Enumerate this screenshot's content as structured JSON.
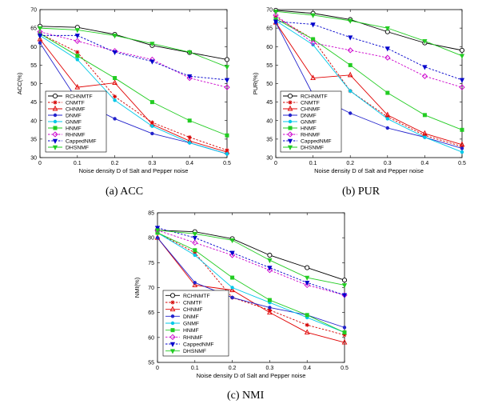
{
  "captions": [
    "(a)  ACC",
    "(b)  PUR",
    "(c)  NMI"
  ],
  "legend": {
    "RCHNMTF": {
      "color": "#000000",
      "marker": "circle",
      "dash": false
    },
    "CNMTF": {
      "color": "#d40000",
      "marker": "star",
      "dash": true
    },
    "CHNMF": {
      "color": "#e00000",
      "marker": "triangle",
      "dash": false
    },
    "DNMF": {
      "color": "#2222cc",
      "marker": "dot",
      "dash": false
    },
    "GNMF": {
      "color": "#00c8e8",
      "marker": "dot",
      "dash": false
    },
    "HNMF": {
      "color": "#22cc22",
      "marker": "square",
      "dash": false
    },
    "RHNMF": {
      "color": "#cc00cc",
      "marker": "diamond",
      "dash": true
    },
    "CappedNMF": {
      "color": "#0000cc",
      "marker": "triangle-down",
      "dash": true
    },
    "DHSNMF": {
      "color": "#22cc22",
      "marker": "triangle-down",
      "dash": false
    }
  },
  "chart_data": [
    {
      "type": "line",
      "title": "ACC",
      "xlabel": "Noise density D of Salt and Pepper noise",
      "ylabel": "ACC(%)",
      "x": [
        0,
        0.1,
        0.2,
        0.3,
        0.4,
        0.5
      ],
      "xlim": [
        0,
        0.5
      ],
      "ylim": [
        30,
        70
      ],
      "xticks": [
        "0",
        "0.1",
        "0.2",
        "0.3",
        "0.4",
        "0.5"
      ],
      "yticks": [
        "30",
        "35",
        "40",
        "45",
        "50",
        "55",
        "60",
        "65",
        "70"
      ],
      "series": [
        {
          "name": "RCHNMTF",
          "values": [
            65.5,
            65.2,
            63.3,
            60.3,
            58.4,
            56.5
          ]
        },
        {
          "name": "CNMTF",
          "values": [
            63.5,
            58.5,
            46.5,
            39.5,
            35.5,
            32.0
          ]
        },
        {
          "name": "CHNMF",
          "values": [
            62.0,
            49.0,
            50.2,
            39.0,
            34.5,
            31.5
          ]
        },
        {
          "name": "DNMF",
          "values": [
            61.0,
            45.5,
            40.5,
            36.5,
            34.0,
            31.0
          ]
        },
        {
          "name": "GNMF",
          "values": [
            63.0,
            56.5,
            45.5,
            38.5,
            34.0,
            31.0
          ]
        },
        {
          "name": "HNMF",
          "values": [
            63.5,
            57.5,
            51.5,
            45.0,
            40.0,
            36.0
          ]
        },
        {
          "name": "RHNMF",
          "values": [
            64.0,
            61.5,
            58.8,
            56.5,
            51.5,
            49.0
          ]
        },
        {
          "name": "CappedNMF",
          "values": [
            63.0,
            63.0,
            58.5,
            56.0,
            52.0,
            51.0
          ]
        },
        {
          "name": "DHSNMF",
          "values": [
            65.0,
            64.5,
            63.0,
            60.8,
            58.5,
            54.5
          ]
        }
      ]
    },
    {
      "type": "line",
      "title": "PUR",
      "xlabel": "Noise density D of Salt and Pepper noise",
      "ylabel": "PUR(%)",
      "x": [
        0,
        0.1,
        0.2,
        0.3,
        0.4,
        0.5
      ],
      "xlim": [
        0,
        0.5
      ],
      "ylim": [
        30,
        70
      ],
      "xticks": [
        "0",
        "0.1",
        "0.2",
        "0.3",
        "0.4",
        "0.5"
      ],
      "yticks": [
        "30",
        "35",
        "40",
        "45",
        "50",
        "55",
        "60",
        "65",
        "70"
      ],
      "series": [
        {
          "name": "RCHNMTF",
          "values": [
            69.8,
            69.0,
            67.3,
            64.0,
            61.0,
            59.0
          ]
        },
        {
          "name": "CNMTF",
          "values": [
            68.0,
            62.0,
            48.0,
            41.0,
            36.0,
            33.0
          ]
        },
        {
          "name": "CHNMF",
          "values": [
            66.5,
            51.5,
            52.3,
            41.5,
            36.5,
            33.5
          ]
        },
        {
          "name": "DNMF",
          "values": [
            66.5,
            47.0,
            42.0,
            38.0,
            35.5,
            32.5
          ]
        },
        {
          "name": "GNMF",
          "values": [
            67.0,
            60.5,
            48.0,
            40.5,
            35.5,
            31.5
          ]
        },
        {
          "name": "HNMF",
          "values": [
            67.5,
            62.0,
            55.0,
            47.5,
            41.5,
            37.5
          ]
        },
        {
          "name": "RHNMF",
          "values": [
            68.5,
            61.0,
            59.0,
            57.0,
            52.0,
            49.0
          ]
        },
        {
          "name": "CappedNMF",
          "values": [
            66.8,
            66.0,
            62.5,
            59.5,
            54.5,
            51.0
          ]
        },
        {
          "name": "DHSNMF",
          "values": [
            69.5,
            68.5,
            67.0,
            65.0,
            61.5,
            57.5
          ]
        }
      ]
    },
    {
      "type": "line",
      "title": "NMI",
      "xlabel": "Noise density D of Salt and Pepper noise",
      "ylabel": "NMI(%)",
      "x": [
        0,
        0.1,
        0.2,
        0.3,
        0.4,
        0.5
      ],
      "xlim": [
        0,
        0.5
      ],
      "ylim": [
        55,
        85
      ],
      "xticks": [
        "0",
        "0.1",
        "0.2",
        "0.3",
        "0.4",
        "0.5"
      ],
      "yticks": [
        "55",
        "60",
        "65",
        "70",
        "75",
        "80",
        "85"
      ],
      "series": [
        {
          "name": "RCHNMTF",
          "values": [
            81.5,
            81.2,
            79.8,
            76.5,
            74.0,
            71.5
          ]
        },
        {
          "name": "CNMTF",
          "values": [
            81.0,
            77.0,
            68.0,
            65.5,
            62.5,
            60.5
          ]
        },
        {
          "name": "CHNMF",
          "values": [
            80.0,
            70.5,
            69.5,
            65.0,
            61.0,
            59.0
          ]
        },
        {
          "name": "DNMF",
          "values": [
            80.0,
            71.0,
            68.0,
            66.0,
            64.5,
            62.0
          ]
        },
        {
          "name": "GNMF",
          "values": [
            81.0,
            76.5,
            70.0,
            67.0,
            64.0,
            61.0
          ]
        },
        {
          "name": "HNMF",
          "values": [
            81.0,
            77.5,
            72.0,
            67.5,
            64.5,
            61.0
          ]
        },
        {
          "name": "RHNMF",
          "values": [
            81.5,
            79.0,
            76.5,
            73.5,
            70.5,
            68.5
          ]
        },
        {
          "name": "CappedNMF",
          "values": [
            82.0,
            80.0,
            77.0,
            74.0,
            71.0,
            68.5
          ]
        },
        {
          "name": "DHSNMF",
          "values": [
            81.5,
            80.8,
            79.5,
            75.5,
            72.0,
            70.5
          ]
        }
      ]
    }
  ]
}
